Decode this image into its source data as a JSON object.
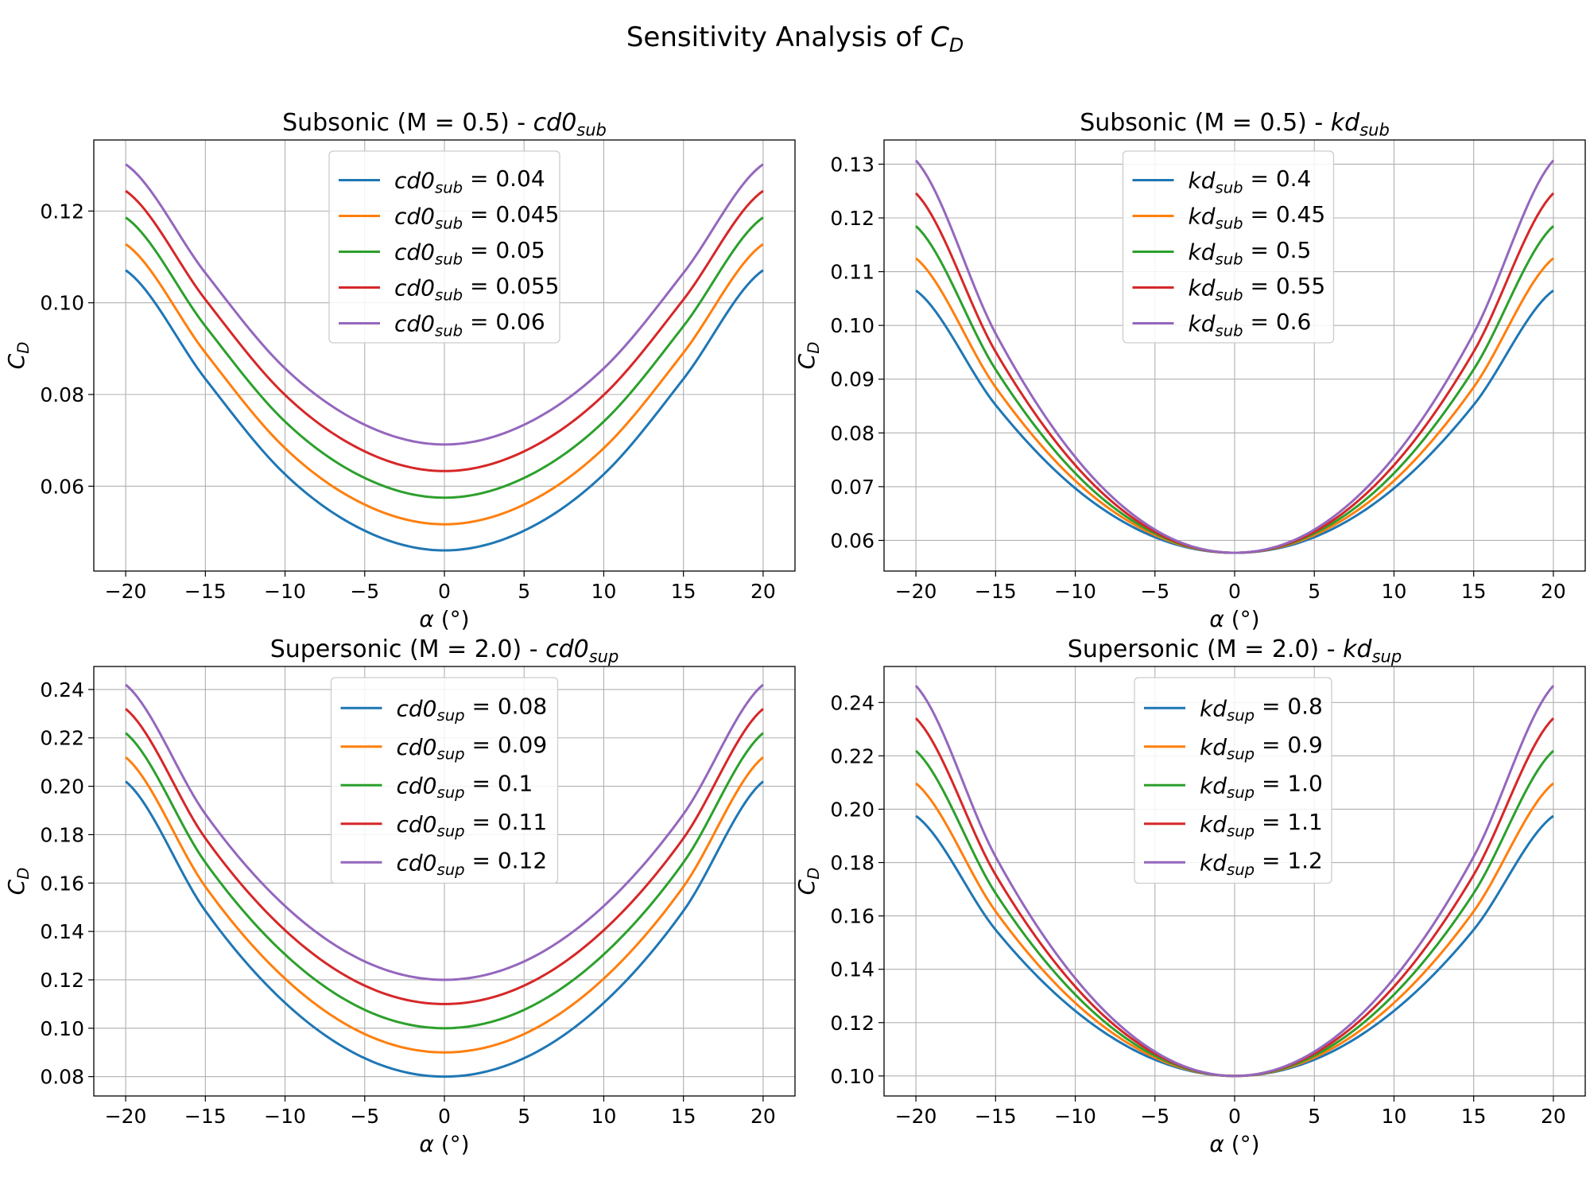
{
  "figure": {
    "suptitle": "Sensitivity Analysis of C_D"
  },
  "chart_data": [
    {
      "type": "line",
      "title": "Subsonic (M = 0.5) - cd0_sub",
      "xlabel": "α (°)",
      "ylabel": "C_D",
      "xlim": [
        -22,
        22
      ],
      "ylim": [
        0.0415,
        0.1355
      ],
      "xticks": [
        "−20",
        "−15",
        "−10",
        "−5",
        "0",
        "5",
        "10",
        "15",
        "20"
      ],
      "yticks": [
        "0.06",
        "0.08",
        "0.10",
        "0.12"
      ],
      "grid": true,
      "legend": "upper center",
      "x": [
        -20,
        -15,
        -10,
        -5,
        0,
        5,
        10,
        15,
        20
      ],
      "series": [
        {
          "name": "cd0_sub = 0.04",
          "color": "#1f77b4",
          "values": [
            0.1071,
            0.0834,
            0.0626,
            0.0503,
            0.046,
            0.0503,
            0.0626,
            0.0834,
            0.1071
          ]
        },
        {
          "name": "cd0_sub = 0.045",
          "color": "#ff7f0e",
          "values": [
            0.1128,
            0.0891,
            0.0683,
            0.056,
            0.0517,
            0.056,
            0.0683,
            0.0891,
            0.1128
          ]
        },
        {
          "name": "cd0_sub = 0.05",
          "color": "#2ca02c",
          "values": [
            0.1186,
            0.0949,
            0.0741,
            0.0618,
            0.0575,
            0.0618,
            0.0741,
            0.0949,
            0.1186
          ]
        },
        {
          "name": "cd0_sub = 0.055",
          "color": "#d62728",
          "values": [
            0.1244,
            0.1007,
            0.0799,
            0.0676,
            0.0633,
            0.0676,
            0.0799,
            0.1007,
            0.1244
          ]
        },
        {
          "name": "cd0_sub = 0.06",
          "color": "#9467bd",
          "values": [
            0.1302,
            0.1065,
            0.0857,
            0.0734,
            0.0691,
            0.0734,
            0.0857,
            0.1065,
            0.1302
          ]
        }
      ]
    },
    {
      "type": "line",
      "title": "Subsonic (M = 0.5) - kd_sub",
      "xlabel": "α (°)",
      "ylabel": "C_D",
      "xlim": [
        -22,
        22
      ],
      "ylim": [
        0.0543,
        0.1345
      ],
      "xticks": [
        "−20",
        "−15",
        "−10",
        "−5",
        "0",
        "5",
        "10",
        "15",
        "20"
      ],
      "yticks": [
        "0.06",
        "0.07",
        "0.08",
        "0.09",
        "0.10",
        "0.11",
        "0.12",
        "0.13"
      ],
      "grid": true,
      "legend": "upper center",
      "x": [
        -20,
        -15,
        -10,
        -5,
        0,
        5,
        10,
        15,
        20
      ],
      "series": [
        {
          "name": "kd_sub = 0.4",
          "color": "#1f77b4",
          "values": [
            0.1065,
            0.0852,
            0.0697,
            0.0606,
            0.0577,
            0.0606,
            0.0697,
            0.0852,
            0.1065
          ]
        },
        {
          "name": "kd_sub = 0.45",
          "color": "#ff7f0e",
          "values": [
            0.1125,
            0.0885,
            0.0711,
            0.061,
            0.0577,
            0.061,
            0.0711,
            0.0885,
            0.1125
          ]
        },
        {
          "name": "kd_sub = 0.5",
          "color": "#2ca02c",
          "values": [
            0.1185,
            0.0918,
            0.0725,
            0.0613,
            0.0577,
            0.0613,
            0.0725,
            0.0918,
            0.1185
          ]
        },
        {
          "name": "kd_sub = 0.55",
          "color": "#d62728",
          "values": [
            0.1246,
            0.0951,
            0.074,
            0.0616,
            0.0577,
            0.0616,
            0.074,
            0.0951,
            0.1246
          ]
        },
        {
          "name": "kd_sub = 0.6",
          "color": "#9467bd",
          "values": [
            0.1307,
            0.0985,
            0.0755,
            0.062,
            0.0577,
            0.062,
            0.0755,
            0.0985,
            0.1307
          ]
        }
      ]
    },
    {
      "type": "line",
      "title": "Supersonic (M = 2.0) - cd0_sup",
      "xlabel": "α (°)",
      "ylabel": "C_D",
      "xlim": [
        -22,
        22
      ],
      "ylim": [
        0.072,
        0.2495
      ],
      "xticks": [
        "−20",
        "−15",
        "−10",
        "−5",
        "0",
        "5",
        "10",
        "15",
        "20"
      ],
      "yticks": [
        "0.08",
        "0.10",
        "0.12",
        "0.14",
        "0.16",
        "0.18",
        "0.20",
        "0.22",
        "0.24"
      ],
      "grid": true,
      "legend": "upper center",
      "x": [
        -20,
        -15,
        -10,
        -5,
        0,
        5,
        10,
        15,
        20
      ],
      "series": [
        {
          "name": "cd0_sup = 0.08",
          "color": "#1f77b4",
          "values": [
            0.202,
            0.1485,
            0.1105,
            0.0876,
            0.08,
            0.0876,
            0.1105,
            0.1485,
            0.202
          ]
        },
        {
          "name": "cd0_sup = 0.09",
          "color": "#ff7f0e",
          "values": [
            0.212,
            0.1585,
            0.1205,
            0.0976,
            0.09,
            0.0976,
            0.1205,
            0.1585,
            0.212
          ]
        },
        {
          "name": "cd0_sup = 0.1",
          "color": "#2ca02c",
          "values": [
            0.222,
            0.1685,
            0.1305,
            0.1076,
            0.1,
            0.1076,
            0.1305,
            0.1685,
            0.222
          ]
        },
        {
          "name": "cd0_sup = 0.11",
          "color": "#d62728",
          "values": [
            0.232,
            0.1785,
            0.1405,
            0.1176,
            0.11,
            0.1176,
            0.1405,
            0.1785,
            0.232
          ]
        },
        {
          "name": "cd0_sup = 0.12",
          "color": "#9467bd",
          "values": [
            0.242,
            0.1885,
            0.1505,
            0.1276,
            0.12,
            0.1276,
            0.1505,
            0.1885,
            0.242
          ]
        }
      ]
    },
    {
      "type": "line",
      "title": "Supersonic (M = 2.0) - kd_sup",
      "xlabel": "α (°)",
      "ylabel": "C_D",
      "xlim": [
        -22,
        22
      ],
      "ylim": [
        0.0925,
        0.2535
      ],
      "xticks": [
        "−20",
        "−15",
        "−10",
        "−5",
        "0",
        "5",
        "10",
        "15",
        "20"
      ],
      "yticks": [
        "0.10",
        "0.12",
        "0.14",
        "0.16",
        "0.18",
        "0.20",
        "0.22",
        "0.24"
      ],
      "grid": true,
      "legend": "upper center",
      "x": [
        -20,
        -15,
        -10,
        -5,
        0,
        5,
        10,
        15,
        20
      ],
      "series": [
        {
          "name": "kd_sup = 0.8",
          "color": "#1f77b4",
          "values": [
            0.1975,
            0.1548,
            0.1244,
            0.1061,
            0.1,
            0.1061,
            0.1244,
            0.1548,
            0.1975
          ]
        },
        {
          "name": "kd_sup = 0.9",
          "color": "#ff7f0e",
          "values": [
            0.2097,
            0.1617,
            0.1274,
            0.1069,
            0.1,
            0.1069,
            0.1274,
            0.1617,
            0.2097
          ]
        },
        {
          "name": "kd_sup = 1.0",
          "color": "#2ca02c",
          "values": [
            0.2219,
            0.1685,
            0.1305,
            0.1076,
            0.1,
            0.1076,
            0.1305,
            0.1685,
            0.2219
          ]
        },
        {
          "name": "kd_sup = 1.1",
          "color": "#d62728",
          "values": [
            0.2341,
            0.1754,
            0.1335,
            0.1084,
            0.1,
            0.1084,
            0.1335,
            0.1754,
            0.2341
          ]
        },
        {
          "name": "kd_sup = 1.2",
          "color": "#9467bd",
          "values": [
            0.2463,
            0.1822,
            0.1366,
            0.1091,
            0.1,
            0.1091,
            0.1366,
            0.1822,
            0.2463
          ]
        }
      ]
    }
  ]
}
